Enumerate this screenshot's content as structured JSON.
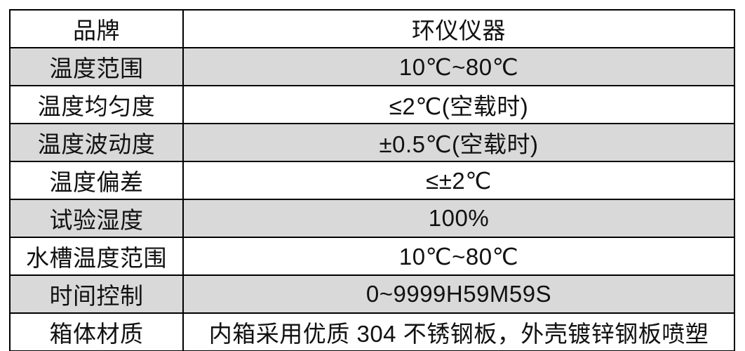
{
  "table": {
    "rows": [
      {
        "label": "品牌",
        "value": "环仪仪器"
      },
      {
        "label": "温度范围",
        "value": "10℃~80℃"
      },
      {
        "label": "温度均匀度",
        "value": "≤2℃(空载时)"
      },
      {
        "label": "温度波动度",
        "value": "±0.5℃(空载时)"
      },
      {
        "label": "温度偏差",
        "value": "≤±2℃"
      },
      {
        "label": "试验湿度",
        "value": "100%"
      },
      {
        "label": "水槽温度范围",
        "value": "10℃~80℃"
      },
      {
        "label": "时间控制",
        "value": "0~9999H59M59S"
      },
      {
        "label": "箱体材质",
        "value": "内箱采用优质 304 不锈钢板，外壳镀锌钢板喷塑"
      }
    ],
    "colors": {
      "row_alt_background": "#d9d9d9",
      "row_plain_background": "#ffffff",
      "border": "#000000",
      "text": "#111111"
    }
  }
}
